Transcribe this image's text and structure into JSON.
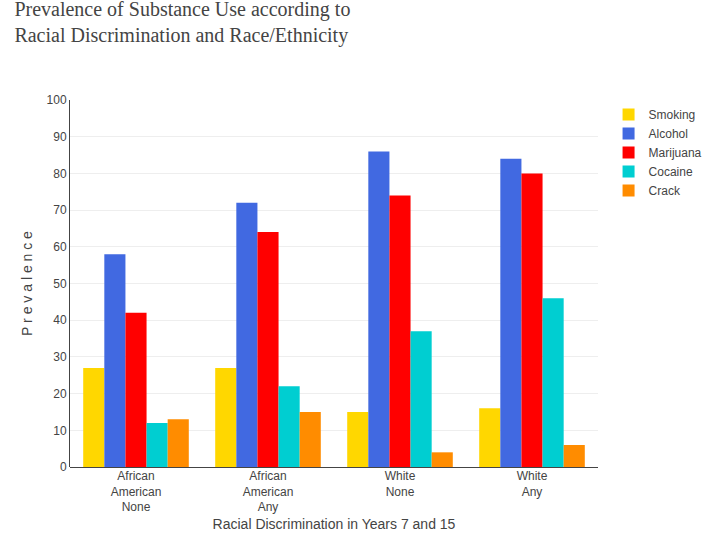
{
  "chart_data": {
    "type": "bar",
    "title": "Prevalence of Substance Use according to\nRacial Discrimination and Race/Ethnicity",
    "x_label": "Racial Discrimination in Years 7 and 15",
    "y_label": "P r e v a l e n c e",
    "categories": [
      "African\nAmerican\nNone",
      "African\nAmerican\nAny",
      "White\nNone",
      "White\nAny"
    ],
    "series": [
      {
        "name": "Smoking",
        "color": "#FFD700",
        "values": [
          27,
          27,
          15,
          16
        ]
      },
      {
        "name": "Alcohol",
        "color": "#4169E1",
        "values": [
          58,
          72,
          86,
          84
        ]
      },
      {
        "name": "Marijuana",
        "color": "#FF0000",
        "values": [
          42,
          64,
          74,
          80
        ]
      },
      {
        "name": "Cocaine",
        "color": "#00CED1",
        "values": [
          12,
          22,
          37,
          46
        ]
      },
      {
        "name": "Crack",
        "color": "#FF8C00",
        "values": [
          13,
          15,
          4,
          6
        ]
      }
    ],
    "ylim": [
      0,
      100
    ],
    "yticks": [
      0,
      10,
      20,
      30,
      40,
      50,
      60,
      70,
      80,
      90,
      100
    ],
    "grid": true,
    "legend": "right"
  }
}
